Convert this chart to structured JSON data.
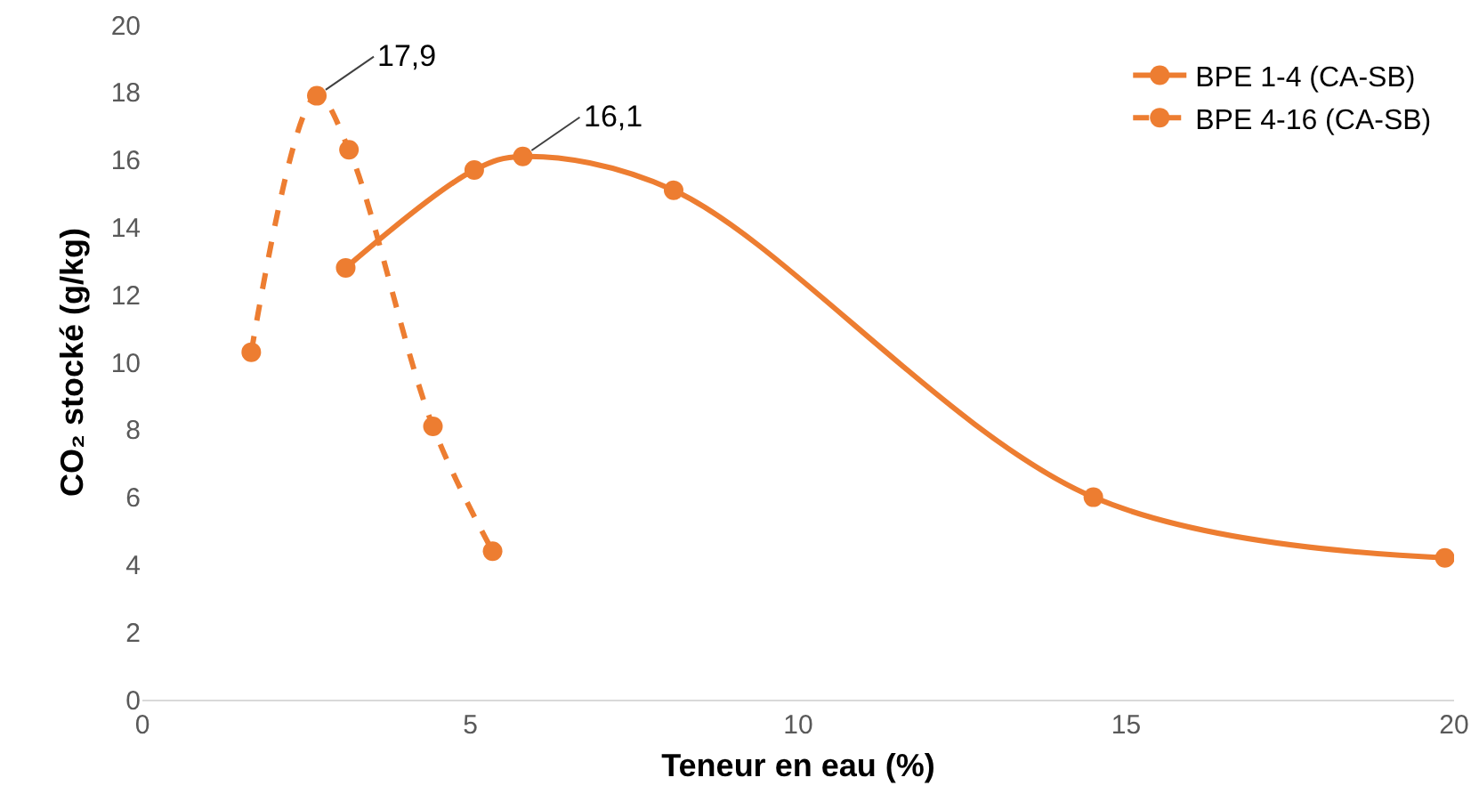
{
  "chart_data": {
    "type": "line",
    "xlabel": "Teneur en eau (%)",
    "ylabel": "CO₂ stocké (g/kg)",
    "xlim": [
      0,
      20
    ],
    "xticks": [
      0,
      5,
      10,
      15,
      20
    ],
    "ylim": [
      0,
      20
    ],
    "yticks": [
      0,
      2,
      4,
      6,
      8,
      10,
      12,
      14,
      16,
      18,
      20
    ],
    "grid": false,
    "legend": "top right",
    "marker": "circle",
    "series": [
      {
        "name": "BPE 1-4 (CA-SB)",
        "color": "#ed7d31",
        "line_style": "solid",
        "x": [
          3.1,
          5.06,
          5.8,
          8.1,
          14.5,
          19.86
        ],
        "values": [
          12.8,
          15.7,
          16.1,
          15.1,
          6.0,
          4.2
        ]
      },
      {
        "name": "BPE 4-16 (CA-SB)",
        "color": "#ed7d31",
        "line_style": "dashed",
        "x": [
          1.66,
          2.66,
          3.15,
          4.43,
          5.34
        ],
        "values": [
          10.3,
          17.9,
          16.3,
          8.1,
          4.4
        ]
      }
    ],
    "annotations": [
      {
        "text": "17,9",
        "x": 2.66,
        "y": 17.9
      },
      {
        "text": "16,1",
        "x": 5.8,
        "y": 16.1
      }
    ]
  }
}
